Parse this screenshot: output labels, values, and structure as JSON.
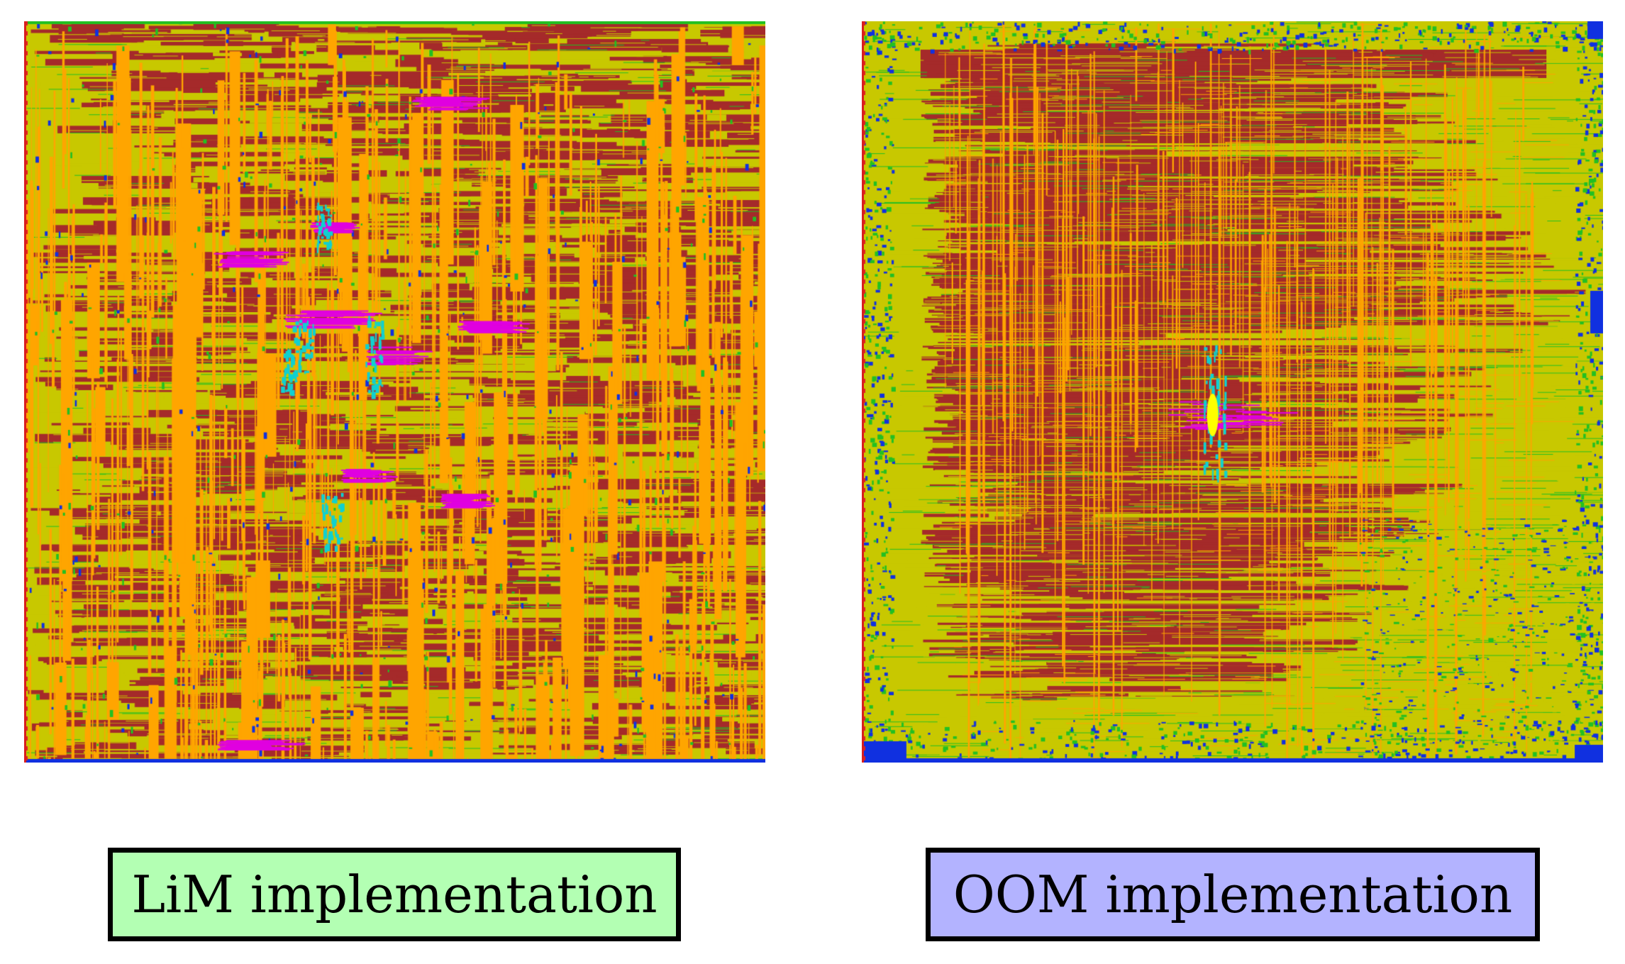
{
  "figure": {
    "panels": [
      {
        "id": "lim",
        "caption": "LiM implementation",
        "caption_bg": "#b3ffb3",
        "dominant_colors": [
          "#a52a2a",
          "#ffa500",
          "#c8c800"
        ],
        "highlight_colors": [
          "#ff00ff",
          "#00d0d0"
        ]
      },
      {
        "id": "oom",
        "caption": "OOM implementation",
        "caption_bg": "#b3b3ff",
        "dominant_colors": [
          "#c8c800",
          "#a52a2a",
          "#ffa500"
        ],
        "highlight_colors": [
          "#ff00ff",
          "#00d0d0",
          "#0000ff",
          "#00c000"
        ]
      }
    ]
  }
}
